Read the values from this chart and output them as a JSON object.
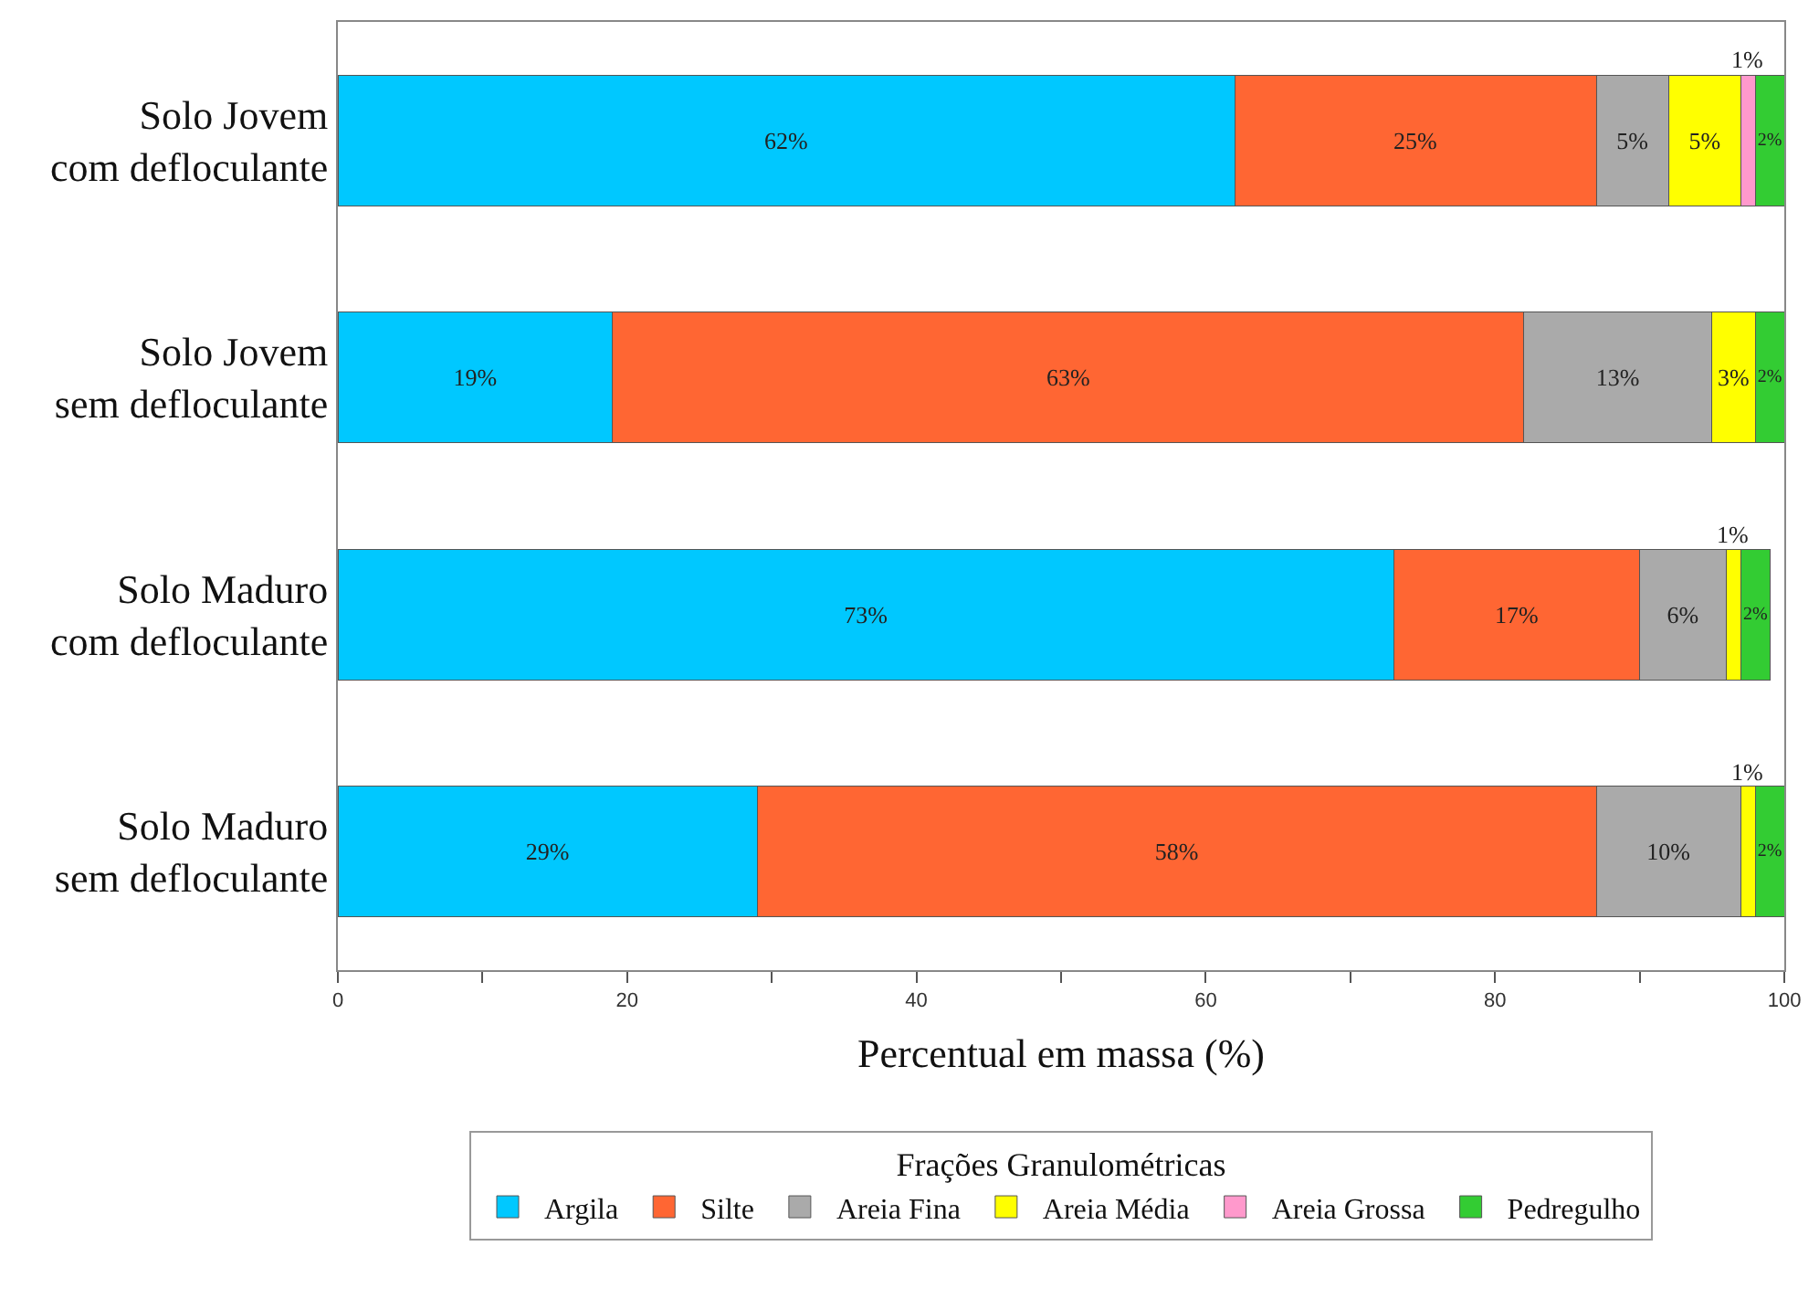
{
  "chart_data": {
    "type": "bar",
    "orientation": "horizontal",
    "stacked": true,
    "categories": [
      "Solo Jovem\ncom defloculante",
      "Solo Jovem\nsem defloculante",
      "Solo Maduro\ncom defloculante",
      "Solo Maduro\nsem defloculante"
    ],
    "xlabel": "Percentual em massa (%)",
    "legend_title": "Frações Granulométricas",
    "legend": "bottom",
    "xlim": [
      0,
      100
    ],
    "xticks": [
      0,
      {
        "value": 10,
        "label": null
      },
      20,
      {
        "value": 30,
        "label": null
      },
      40,
      {
        "value": 50,
        "label": null
      },
      60,
      {
        "value": 70,
        "label": null
      },
      80,
      {
        "value": 90,
        "label": null
      },
      100
    ],
    "series": [
      {
        "name": "Argila",
        "color": "#00c8ff",
        "values": [
          62,
          19,
          73,
          29
        ],
        "value_labels": [
          "62%",
          "19%",
          "73%",
          "29%"
        ]
      },
      {
        "name": "Silte",
        "color": "#ff6633",
        "values": [
          25,
          63,
          17,
          58
        ],
        "value_labels": [
          "25%",
          "63%",
          "17%",
          "58%"
        ]
      },
      {
        "name": "Areia Fina",
        "color": "#aaaaaa",
        "values": [
          5,
          13,
          6,
          10
        ],
        "value_labels": [
          "5%",
          "13%",
          "6%",
          "10%"
        ]
      },
      {
        "name": "Areia Média",
        "color": "#ffff00",
        "values": [
          5,
          3,
          1,
          1
        ],
        "value_labels": [
          "5%",
          "3%",
          "1%",
          "1%"
        ]
      },
      {
        "name": "Areia Grossa",
        "color": "#ff99cc",
        "values": [
          1,
          0,
          0,
          0
        ],
        "value_labels": [
          "1%",
          null,
          null,
          null
        ]
      },
      {
        "name": "Pedregulho",
        "color": "#33cc33",
        "values": [
          2,
          2,
          2,
          2
        ],
        "value_labels": [
          "2%",
          "2%",
          "2%",
          "2%"
        ]
      }
    ]
  }
}
